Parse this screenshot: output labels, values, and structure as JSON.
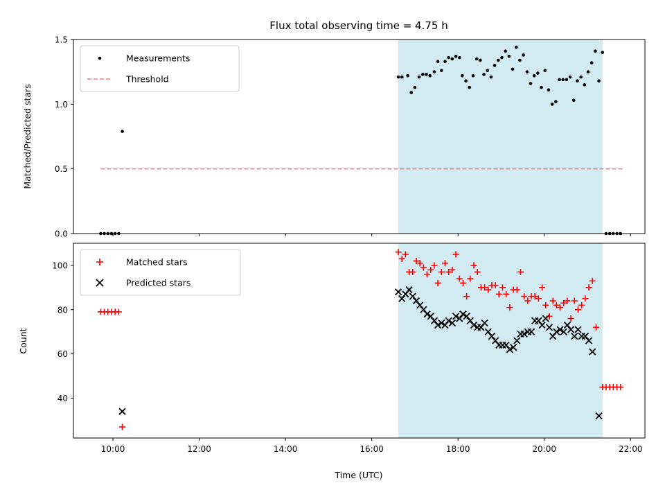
{
  "chart_data": [
    {
      "type": "scatter",
      "title": "Flux total observing time = 4.75 h",
      "xlabel": "",
      "ylabel": "Matched/Predicted stars",
      "xlim": [
        "09:05",
        "22:20"
      ],
      "ylim": [
        0,
        1.5
      ],
      "yticks": [
        "0.0",
        "0.5",
        "1.0",
        "1.5"
      ],
      "shaded_span": [
        "16:37",
        "21:21"
      ],
      "legend": {
        "position": "top-left",
        "entries": [
          "Measurements",
          "Threshold"
        ]
      },
      "threshold": {
        "name": "Threshold",
        "y": 0.5,
        "x": [
          "09:43",
          "21:49"
        ],
        "color": "#f08080"
      },
      "series": [
        {
          "name": "Measurements",
          "color": "#000000",
          "points": [
            [
              "09:43",
              0.0
            ],
            [
              "09:48",
              0.0
            ],
            [
              "09:53",
              0.0
            ],
            [
              "09:58",
              0.0
            ],
            [
              "10:03",
              0.0
            ],
            [
              "10:08",
              0.0
            ],
            [
              "10:13",
              0.79
            ],
            [
              "16:37",
              1.21
            ],
            [
              "16:42",
              1.21
            ],
            [
              "16:50",
              1.22
            ],
            [
              "16:55",
              1.09
            ],
            [
              "17:00",
              1.13
            ],
            [
              "17:06",
              1.21
            ],
            [
              "17:11",
              1.23
            ],
            [
              "17:16",
              1.23
            ],
            [
              "17:21",
              1.22
            ],
            [
              "17:27",
              1.25
            ],
            [
              "17:32",
              1.33
            ],
            [
              "17:37",
              1.26
            ],
            [
              "17:42",
              1.33
            ],
            [
              "17:47",
              1.36
            ],
            [
              "17:52",
              1.35
            ],
            [
              "17:57",
              1.37
            ],
            [
              "18:02",
              1.36
            ],
            [
              "18:06",
              1.22
            ],
            [
              "18:11",
              1.18
            ],
            [
              "18:16",
              1.13
            ],
            [
              "18:21",
              1.22
            ],
            [
              "18:26",
              1.35
            ],
            [
              "18:31",
              1.34
            ],
            [
              "18:36",
              1.23
            ],
            [
              "18:41",
              1.26
            ],
            [
              "18:46",
              1.21
            ],
            [
              "18:51",
              1.3
            ],
            [
              "18:56",
              1.34
            ],
            [
              "19:01",
              1.36
            ],
            [
              "19:06",
              1.41
            ],
            [
              "19:11",
              1.37
            ],
            [
              "19:16",
              1.27
            ],
            [
              "19:21",
              1.44
            ],
            [
              "19:26",
              1.34
            ],
            [
              "19:31",
              1.38
            ],
            [
              "19:36",
              1.25
            ],
            [
              "19:41",
              1.16
            ],
            [
              "19:46",
              1.22
            ],
            [
              "19:51",
              1.24
            ],
            [
              "19:56",
              1.13
            ],
            [
              "20:01",
              1.26
            ],
            [
              "20:06",
              1.11
            ],
            [
              "20:11",
              1.0
            ],
            [
              "20:16",
              1.02
            ],
            [
              "20:21",
              1.19
            ],
            [
              "20:26",
              1.19
            ],
            [
              "20:31",
              1.19
            ],
            [
              "20:36",
              1.21
            ],
            [
              "20:41",
              1.03
            ],
            [
              "20:46",
              1.18
            ],
            [
              "20:51",
              1.21
            ],
            [
              "20:56",
              1.15
            ],
            [
              "21:01",
              1.25
            ],
            [
              "21:06",
              1.32
            ],
            [
              "21:11",
              1.41
            ],
            [
              "21:16",
              1.18
            ],
            [
              "21:21",
              1.4
            ],
            [
              "21:26",
              0.0
            ],
            [
              "21:31",
              0.0
            ],
            [
              "21:36",
              0.0
            ],
            [
              "21:41",
              0.0
            ],
            [
              "21:46",
              0.0
            ]
          ]
        }
      ]
    },
    {
      "type": "scatter",
      "title": "",
      "xlabel": "Time (UTC)",
      "ylabel": "Count",
      "xlim": [
        "09:05",
        "22:20"
      ],
      "ylim": [
        22,
        110
      ],
      "yticks": [
        "40",
        "60",
        "80",
        "100"
      ],
      "xticks": [
        "10:00",
        "12:00",
        "14:00",
        "16:00",
        "18:00",
        "20:00",
        "22:00"
      ],
      "shaded_span": [
        "16:37",
        "21:21"
      ],
      "legend": {
        "position": "top-left",
        "entries": [
          "Matched stars",
          "Predicted stars"
        ]
      },
      "series": [
        {
          "name": "Matched stars",
          "marker": "+",
          "color": "#ff0000",
          "points": [
            [
              "09:43",
              79
            ],
            [
              "09:48",
              79
            ],
            [
              "09:53",
              79
            ],
            [
              "09:58",
              79
            ],
            [
              "10:03",
              79
            ],
            [
              "10:08",
              79
            ],
            [
              "10:13",
              27
            ],
            [
              "16:37",
              106
            ],
            [
              "16:42",
              103
            ],
            [
              "16:47",
              105
            ],
            [
              "16:52",
              97
            ],
            [
              "16:57",
              97
            ],
            [
              "17:02",
              102
            ],
            [
              "17:07",
              101
            ],
            [
              "17:12",
              99
            ],
            [
              "17:17",
              96
            ],
            [
              "17:22",
              98
            ],
            [
              "17:27",
              100
            ],
            [
              "17:32",
              92
            ],
            [
              "17:37",
              97
            ],
            [
              "17:42",
              101
            ],
            [
              "17:47",
              97
            ],
            [
              "17:52",
              98
            ],
            [
              "17:57",
              105
            ],
            [
              "18:02",
              94
            ],
            [
              "18:07",
              92
            ],
            [
              "18:12",
              86
            ],
            [
              "18:17",
              94
            ],
            [
              "18:22",
              100
            ],
            [
              "18:27",
              97
            ],
            [
              "18:32",
              90
            ],
            [
              "18:37",
              90
            ],
            [
              "18:42",
              89
            ],
            [
              "18:47",
              91
            ],
            [
              "18:52",
              91
            ],
            [
              "18:57",
              87
            ],
            [
              "19:02",
              90
            ],
            [
              "19:07",
              87
            ],
            [
              "19:12",
              81
            ],
            [
              "19:17",
              89
            ],
            [
              "19:22",
              89
            ],
            [
              "19:27",
              97
            ],
            [
              "19:32",
              86
            ],
            [
              "19:37",
              84
            ],
            [
              "19:42",
              86
            ],
            [
              "19:47",
              86
            ],
            [
              "19:52",
              85
            ],
            [
              "19:57",
              90
            ],
            [
              "20:02",
              82
            ],
            [
              "20:07",
              77
            ],
            [
              "20:12",
              84
            ],
            [
              "20:17",
              82
            ],
            [
              "20:22",
              81
            ],
            [
              "20:27",
              83
            ],
            [
              "20:32",
              84
            ],
            [
              "20:37",
              76
            ],
            [
              "20:42",
              84
            ],
            [
              "20:47",
              80
            ],
            [
              "20:52",
              82
            ],
            [
              "20:57",
              85
            ],
            [
              "21:02",
              90
            ],
            [
              "21:07",
              93
            ],
            [
              "21:12",
              72
            ],
            [
              "21:21",
              45
            ],
            [
              "21:26",
              45
            ],
            [
              "21:31",
              45
            ],
            [
              "21:36",
              45
            ],
            [
              "21:41",
              45
            ],
            [
              "21:46",
              45
            ]
          ]
        },
        {
          "name": "Predicted stars",
          "marker": "x",
          "color": "#000000",
          "points": [
            [
              "10:13",
              34
            ],
            [
              "16:37",
              88
            ],
            [
              "16:42",
              85
            ],
            [
              "16:47",
              87
            ],
            [
              "16:52",
              89
            ],
            [
              "16:57",
              86
            ],
            [
              "17:02",
              84
            ],
            [
              "17:07",
              82
            ],
            [
              "17:12",
              80
            ],
            [
              "17:17",
              78
            ],
            [
              "17:22",
              77
            ],
            [
              "17:27",
              75
            ],
            [
              "17:32",
              73
            ],
            [
              "17:37",
              74
            ],
            [
              "17:42",
              73
            ],
            [
              "17:47",
              75
            ],
            [
              "17:52",
              74
            ],
            [
              "17:57",
              77
            ],
            [
              "18:02",
              76
            ],
            [
              "18:07",
              78
            ],
            [
              "18:12",
              77
            ],
            [
              "18:17",
              75
            ],
            [
              "18:22",
              73
            ],
            [
              "18:27",
              72
            ],
            [
              "18:32",
              72
            ],
            [
              "18:37",
              74
            ],
            [
              "18:42",
              70
            ],
            [
              "18:47",
              68
            ],
            [
              "18:52",
              66
            ],
            [
              "18:57",
              64
            ],
            [
              "19:02",
              64
            ],
            [
              "19:07",
              64
            ],
            [
              "19:12",
              62
            ],
            [
              "19:17",
              63
            ],
            [
              "19:22",
              66
            ],
            [
              "19:27",
              69
            ],
            [
              "19:32",
              69
            ],
            [
              "19:37",
              70
            ],
            [
              "19:42",
              70
            ],
            [
              "19:47",
              75
            ],
            [
              "19:52",
              75
            ],
            [
              "19:57",
              73
            ],
            [
              "20:02",
              76
            ],
            [
              "20:07",
              72
            ],
            [
              "20:12",
              68
            ],
            [
              "20:17",
              70
            ],
            [
              "20:22",
              71
            ],
            [
              "20:27",
              70
            ],
            [
              "20:32",
              73
            ],
            [
              "20:37",
              71
            ],
            [
              "20:42",
              68
            ],
            [
              "20:47",
              71
            ],
            [
              "20:52",
              68
            ],
            [
              "20:57",
              68
            ],
            [
              "21:02",
              66
            ],
            [
              "21:07",
              61
            ],
            [
              "21:16",
              32
            ]
          ]
        }
      ]
    }
  ],
  "colors": {
    "span": "#add8e6",
    "threshold": "#f08080",
    "matched": "#ff0000",
    "predicted": "#000000",
    "measurement": "#000000"
  }
}
